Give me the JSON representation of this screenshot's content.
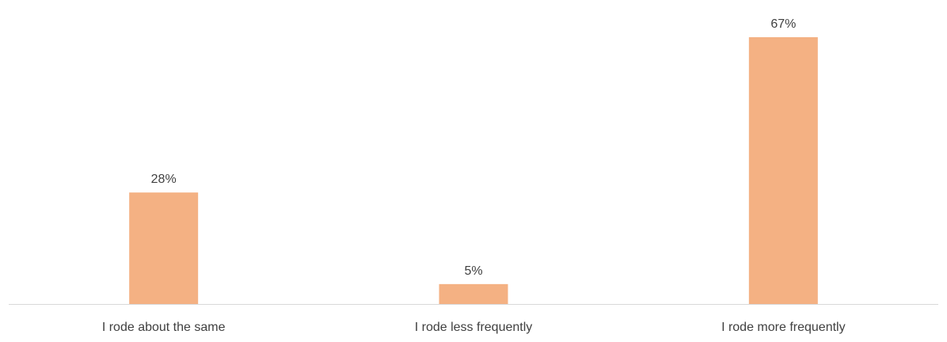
{
  "chart_data": {
    "type": "bar",
    "categories": [
      "I rode about the same",
      "I rode less frequently",
      "I rode more frequently"
    ],
    "values": [
      28,
      5,
      67
    ],
    "data_labels": [
      "28%",
      "5%",
      "67%"
    ],
    "ylim": [
      0,
      67
    ],
    "grid": false,
    "legend": "none",
    "colors": {
      "bar": "#F4B183",
      "axis": "#D9D9D9",
      "text": "#404040"
    }
  }
}
